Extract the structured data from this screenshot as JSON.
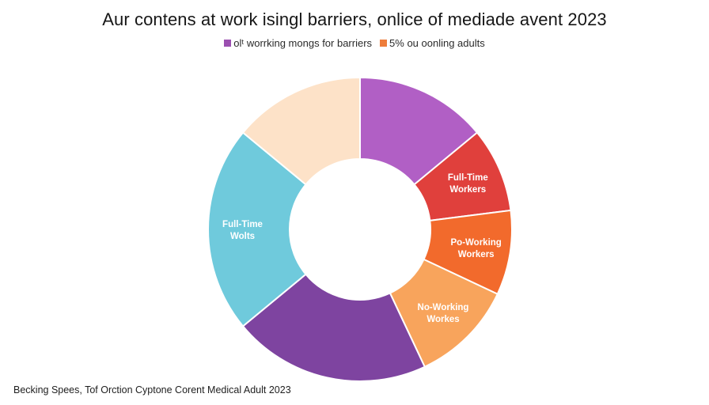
{
  "chart_data": {
    "type": "pie",
    "donut": true,
    "title": "Aur contens at work isingl barriers, onlice of mediade avent 2023",
    "legend_placement": "top",
    "legend": [
      {
        "label": "olᵗ worrking mongs for barriers",
        "color": "#9b4fb0"
      },
      {
        "label": "5% ou oonling adults",
        "color": "#ee7d3b"
      }
    ],
    "slices": [
      {
        "value": 14,
        "color": "#b15fc5",
        "label": []
      },
      {
        "value": 9,
        "color": "#e0403c",
        "label": [
          "Full-Time",
          "Workers"
        ],
        "label_color": "#ffffff"
      },
      {
        "value": 9,
        "color": "#f26a2c",
        "label": [
          "Po-Working",
          "Workers"
        ],
        "label_color": "#ffffff"
      },
      {
        "value": 11,
        "color": "#f8a45c",
        "label": [
          "No-Working",
          "Workes"
        ],
        "label_color": "#ffffff"
      },
      {
        "value": 21,
        "color": "#7e44a0",
        "label": []
      },
      {
        "value": 22,
        "color": "#6fcadc",
        "label": [
          "Full-Time",
          "Wolts"
        ],
        "label_color": "#ffffff"
      },
      {
        "value": 14,
        "color": "#fde2c8",
        "label": []
      }
    ]
  },
  "source": "Becking Spees, Tof Orction Cyptone Corent Medical Adult 2023"
}
